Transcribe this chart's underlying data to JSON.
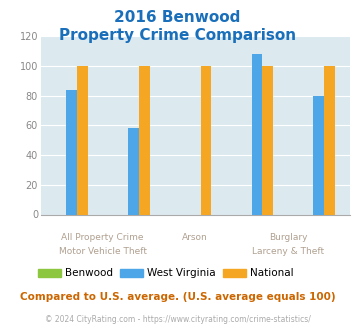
{
  "title_line1": "2016 Benwood",
  "title_line2": "Property Crime Comparison",
  "title_color": "#1a6fba",
  "categories": [
    "All Property Crime",
    "Motor Vehicle Theft",
    "Arson",
    "Burglary",
    "Larceny & Theft"
  ],
  "benwood": [
    0,
    0,
    0,
    0,
    0
  ],
  "west_virginia": [
    84,
    58,
    0,
    108,
    80
  ],
  "national": [
    100,
    100,
    100,
    100,
    100
  ],
  "benwood_color": "#8dc63f",
  "wv_color": "#4da6e8",
  "national_color": "#f5a623",
  "ylim": [
    0,
    120
  ],
  "yticks": [
    0,
    20,
    40,
    60,
    80,
    100,
    120
  ],
  "background_color": "#dce9ef",
  "footer_text": "Compared to U.S. average. (U.S. average equals 100)",
  "footer_color": "#cc6600",
  "copyright_text": "© 2024 CityRating.com - https://www.cityrating.com/crime-statistics/",
  "copyright_color": "#aaaaaa",
  "label_color": "#b0a090",
  "bar_width": 0.35
}
